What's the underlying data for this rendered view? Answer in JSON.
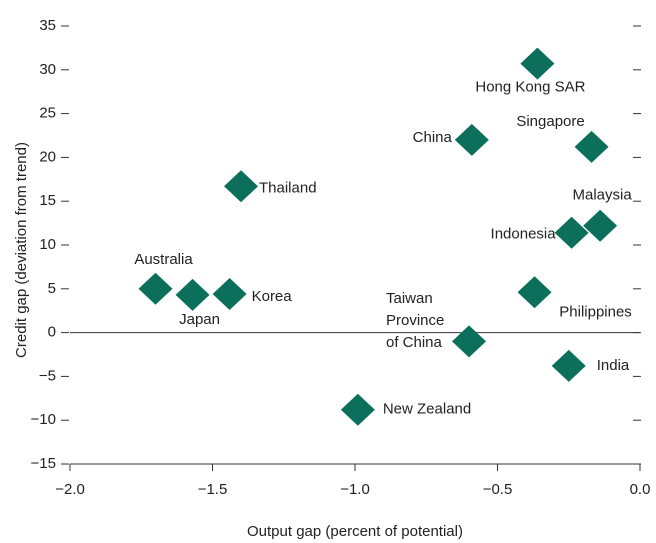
{
  "chart_data": {
    "type": "scatter",
    "xlabel": "Output gap (percent of potential)",
    "ylabel": "Credit gap (deviation from trend)",
    "labels": [
      "Hong Kong SAR",
      "China",
      "Singapore",
      "Thailand",
      "Malaysia",
      "Indonesia",
      "Australia",
      "Japan",
      "Korea",
      "Philippines",
      "Taiwan Province of China",
      "India",
      "New Zealand"
    ],
    "x": [
      -0.36,
      -0.59,
      -0.17,
      -1.4,
      -0.14,
      -0.24,
      -1.7,
      -1.57,
      -1.44,
      -0.37,
      -0.6,
      -0.25,
      -0.99
    ],
    "y": [
      30.7,
      22.0,
      21.2,
      16.7,
      12.2,
      11.4,
      5.0,
      4.3,
      4.4,
      4.6,
      -1.0,
      -3.8,
      -8.8
    ],
    "color": "#0b6f5c",
    "xlim": [
      -2.0,
      0.0
    ],
    "ylim": [
      -15,
      35
    ],
    "xticks": [
      {
        "value": -2.0,
        "label": "−2.0"
      },
      {
        "value": -1.5,
        "label": "−1.5"
      },
      {
        "value": -1.0,
        "label": "−1.0"
      },
      {
        "value": -0.5,
        "label": "−0.5"
      },
      {
        "value": 0.0,
        "label": "0.0"
      }
    ],
    "yticks": [
      {
        "value": -15,
        "label": "−15"
      },
      {
        "value": -10,
        "label": "−10"
      },
      {
        "value": -5,
        "label": "−5"
      },
      0,
      5,
      10,
      15,
      20,
      25,
      30,
      35
    ]
  }
}
